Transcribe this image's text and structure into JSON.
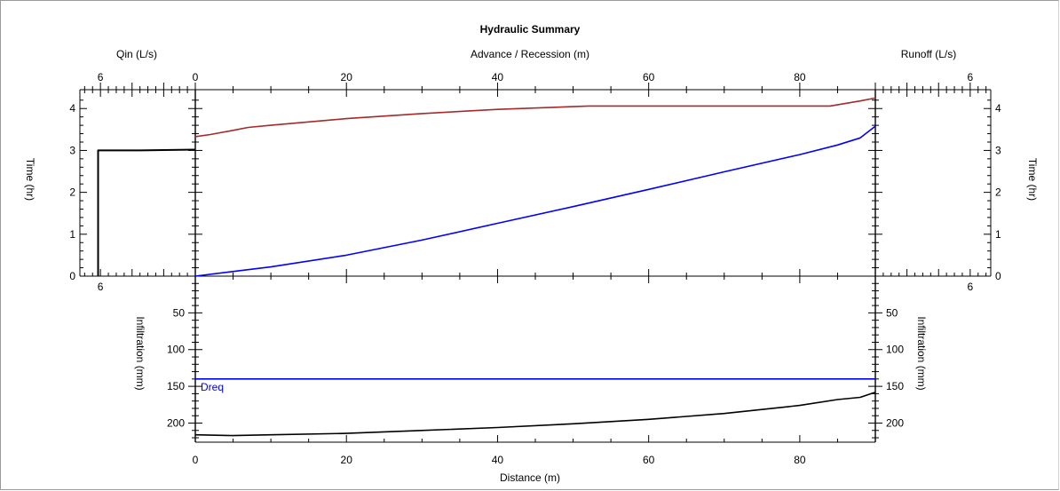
{
  "title": "Hydraulic Summary",
  "axes": {
    "qin_label": "Qin (L/s)",
    "advance_label": "Advance / Recession (m)",
    "runoff_label": "Runoff (L/s)",
    "time_label": "Time (hr)",
    "infiltration_label": "Infiltration (mm)",
    "distance_label": "Distance (m)",
    "x_ticks": [
      "0",
      "20",
      "40",
      "60",
      "80"
    ],
    "time_ticks": [
      "0",
      "1",
      "2",
      "3",
      "4"
    ],
    "infil_ticks": [
      "50",
      "100",
      "150",
      "200"
    ],
    "qin_ticks": [
      "6",
      "0"
    ],
    "runoff_ticks": [
      "6"
    ],
    "side_bottom_ticks": [
      "6"
    ]
  },
  "dreq_label": "Dreq",
  "colors": {
    "recession": "#a52a2a",
    "advance": "#0000ff",
    "dreq": "#0000ff",
    "infiltration": "#000000",
    "qin": "#000000"
  },
  "chart_data": [
    {
      "type": "line",
      "panel": "Qin",
      "xlabel": "Qin (L/s)",
      "ylabel": "Time (hr)",
      "xlim": [
        7.3,
        0
      ],
      "ylim": [
        0,
        4.45
      ],
      "series": [
        {
          "x": [
            6.15,
            6.15,
            3.5,
            0
          ],
          "y": [
            0,
            3.0,
            3.0,
            3.02
          ]
        }
      ]
    },
    {
      "type": "line",
      "panel": "Advance / Recession",
      "xlabel": "Advance / Recession (m)",
      "ylabel": "Time (hr)",
      "xlim": [
        0,
        90
      ],
      "ylim": [
        0,
        4.45
      ],
      "series": [
        {
          "name": "recession",
          "x": [
            0,
            2,
            5,
            7,
            10,
            20,
            30,
            40,
            52,
            60,
            70,
            84,
            86,
            88,
            90
          ],
          "y": [
            3.33,
            3.38,
            3.48,
            3.55,
            3.6,
            3.76,
            3.88,
            3.98,
            4.06,
            4.06,
            4.06,
            4.06,
            4.12,
            4.18,
            4.25
          ]
        },
        {
          "name": "advance",
          "x": [
            0,
            10,
            20,
            30,
            40,
            50,
            60,
            70,
            80,
            85,
            88,
            90
          ],
          "y": [
            0,
            0.22,
            0.5,
            0.86,
            1.26,
            1.66,
            2.07,
            2.49,
            2.9,
            3.13,
            3.3,
            3.58
          ]
        }
      ]
    },
    {
      "type": "line",
      "panel": "Runoff",
      "xlabel": "Runoff (L/s)",
      "ylabel": "Time (hr)",
      "xlim": [
        0,
        7.3
      ],
      "ylim": [
        0,
        4.45
      ],
      "series": []
    },
    {
      "type": "line",
      "panel": "Infiltration",
      "xlabel": "Distance (m)",
      "ylabel": "Infiltration (mm)",
      "xlim": [
        0,
        90
      ],
      "ylim": [
        226,
        0
      ],
      "series": [
        {
          "name": "Dreq",
          "x": [
            0,
            90
          ],
          "y": [
            140,
            140
          ]
        },
        {
          "name": "infiltration",
          "x": [
            0,
            5,
            10,
            20,
            30,
            40,
            50,
            60,
            70,
            80,
            85,
            88,
            90
          ],
          "y": [
            216,
            217,
            216,
            214,
            210,
            206,
            201,
            195,
            187,
            176,
            168,
            165,
            158
          ]
        }
      ]
    }
  ]
}
